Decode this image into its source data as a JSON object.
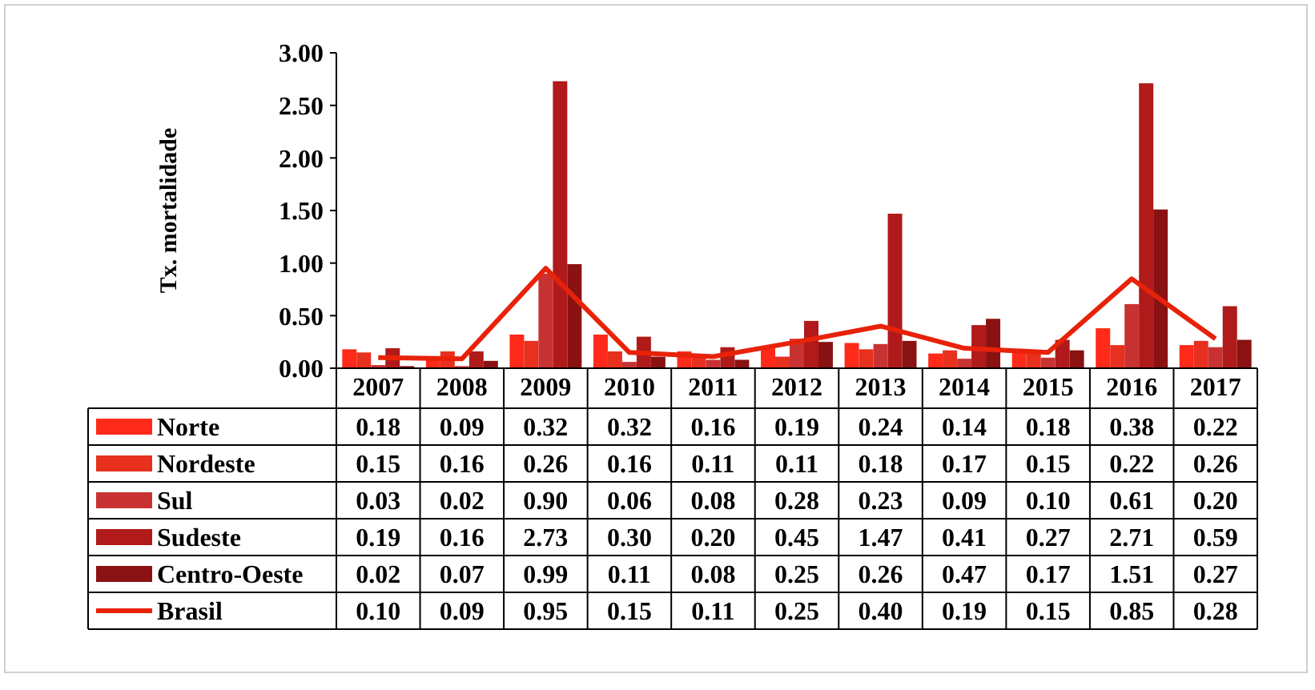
{
  "chart_data": {
    "type": "bar",
    "ylabel": "Tx. mortalidade",
    "categories": [
      "2007",
      "2008",
      "2009",
      "2010",
      "2011",
      "2012",
      "2013",
      "2014",
      "2015",
      "2016",
      "2017"
    ],
    "series": [
      {
        "name": "Norte",
        "color": "#ff2a1a",
        "values": [
          0.18,
          0.09,
          0.32,
          0.32,
          0.16,
          0.19,
          0.24,
          0.14,
          0.18,
          0.38,
          0.22
        ],
        "value_labels": [
          "0.18",
          "0.09",
          "0.32",
          "0.32",
          "0.16",
          "0.19",
          "0.24",
          "0.14",
          "0.18",
          "0.38",
          "0.22"
        ]
      },
      {
        "name": "Nordeste",
        "color": "#e8301e",
        "values": [
          0.15,
          0.16,
          0.26,
          0.16,
          0.11,
          0.11,
          0.18,
          0.17,
          0.15,
          0.22,
          0.26
        ],
        "value_labels": [
          "0.15",
          "0.16",
          "0.26",
          "0.16",
          "0.11",
          "0.11",
          "0.18",
          "0.17",
          "0.15",
          "0.22",
          "0.26"
        ]
      },
      {
        "name": "Sul",
        "color": "#c93232",
        "values": [
          0.03,
          0.02,
          0.9,
          0.06,
          0.08,
          0.28,
          0.23,
          0.09,
          0.1,
          0.61,
          0.2
        ],
        "value_labels": [
          "0.03",
          "0.02",
          "0.90",
          "0.06",
          "0.08",
          "0.28",
          "0.23",
          "0.09",
          "0.10",
          "0.61",
          "0.20"
        ]
      },
      {
        "name": "Sudeste",
        "color": "#b01a1a",
        "values": [
          0.19,
          0.16,
          2.73,
          0.3,
          0.2,
          0.45,
          1.47,
          0.41,
          0.27,
          2.71,
          0.59
        ],
        "value_labels": [
          "0.19",
          "0.16",
          "2.73",
          "0.30",
          "0.20",
          "0.45",
          "1.47",
          "0.41",
          "0.27",
          "2.71",
          "0.59"
        ]
      },
      {
        "name": "Centro-Oeste",
        "color": "#8a1212",
        "values": [
          0.02,
          0.07,
          0.99,
          0.11,
          0.08,
          0.25,
          0.26,
          0.47,
          0.17,
          1.51,
          0.27
        ],
        "value_labels": [
          "0.02",
          "0.07",
          "0.99",
          "0.11",
          "0.08",
          "0.25",
          "0.26",
          "0.47",
          "0.17",
          "1.51",
          "0.27"
        ]
      },
      {
        "name": "Brasil",
        "type": "line",
        "color": "#e8220a",
        "values": [
          0.1,
          0.09,
          0.95,
          0.15,
          0.11,
          0.25,
          0.4,
          0.19,
          0.15,
          0.85,
          0.28
        ],
        "value_labels": [
          "0.10",
          "0.09",
          "0.95",
          "0.15",
          "0.11",
          "0.25",
          "0.40",
          "0.19",
          "0.15",
          "0.85",
          "0.28"
        ]
      }
    ],
    "ylim": [
      0,
      3
    ],
    "yticks": [
      {
        "value": 0,
        "label": "0.00"
      },
      {
        "value": 0.5,
        "label": "0.50"
      },
      {
        "value": 1,
        "label": "1.00"
      },
      {
        "value": 1.5,
        "label": "1.50"
      },
      {
        "value": 2,
        "label": "2.00"
      },
      {
        "value": 2.5,
        "label": "2.50"
      },
      {
        "value": 3,
        "label": "3.00"
      }
    ],
    "grid": false,
    "legend": "bottom",
    "marker": "none",
    "line_style": "solid"
  }
}
